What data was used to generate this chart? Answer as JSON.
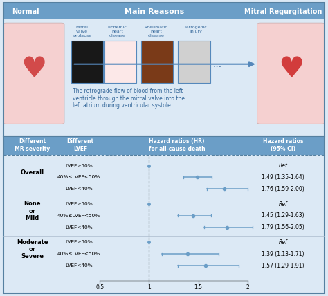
{
  "top_bg_color": "#dce9f5",
  "table_bg_color": "#e8f0f8",
  "header_bg_color": "#6b9ec7",
  "border_color": "#5580a0",
  "title_color": "white",
  "top_titles": [
    "Normal",
    "Main Reasons",
    "Mitral Regurgitation"
  ],
  "col_headers": [
    "Different\nMR severity",
    "Different\nLVEF",
    "Hazard ratios (HR)\nfor all-cause death",
    "Hazard ratios\n(95% CI)"
  ],
  "groups": [
    {
      "label": "Overall",
      "rows": [
        {
          "lvef": "LVEF≥50%",
          "hr": null,
          "lo": null,
          "hi": null,
          "ci_text": "Ref"
        },
        {
          "lvef": "40%≤LVEF<50%",
          "hr": 1.49,
          "lo": 1.35,
          "hi": 1.64,
          "ci_text": "1.49 (1.35-1.64)"
        },
        {
          "lvef": "LVEF<40%",
          "hr": 1.76,
          "lo": 1.59,
          "hi": 2.0,
          "ci_text": "1.76 (1.59-2.00)"
        }
      ]
    },
    {
      "label": "None\nor\nMild",
      "rows": [
        {
          "lvef": "LVEF≥50%",
          "hr": null,
          "lo": null,
          "hi": null,
          "ci_text": "Ref"
        },
        {
          "lvef": "40%≤LVEF<50%",
          "hr": 1.45,
          "lo": 1.29,
          "hi": 1.63,
          "ci_text": "1.45 (1.29-1.63)"
        },
        {
          "lvef": "LVEF<40%",
          "hr": 1.79,
          "lo": 1.56,
          "hi": 2.05,
          "ci_text": "1.79 (1.56-2.05)"
        }
      ]
    },
    {
      "label": "Moderate\nor\nSevere",
      "rows": [
        {
          "lvef": "LVEF≥50%",
          "hr": null,
          "lo": null,
          "hi": null,
          "ci_text": "Ref"
        },
        {
          "lvef": "40%≤LVEF<50%",
          "hr": 1.39,
          "lo": 1.13,
          "hi": 1.71,
          "ci_text": "1.39 (1.13-1.71)"
        },
        {
          "lvef": "LVEF<40%",
          "hr": 1.57,
          "lo": 1.29,
          "hi": 1.91,
          "ci_text": "1.57 (1.29-1.91)"
        }
      ]
    }
  ],
  "xmin": 0.5,
  "xmax": 2.0,
  "xticks": [
    0.5,
    1.0,
    1.5,
    2.0
  ],
  "xticklabels": [
    "0.5",
    "1",
    "1.5",
    "2"
  ],
  "dot_color": "#6b9ec7",
  "line_color": "#6b9ec7",
  "ref_dot_color": "#6b9ec7",
  "text_description": "The retrograde flow of blood from the left\nventricle through the mitral valve into the\nleft atrium during ventricular systole.",
  "top_labels": [
    "Mitral\nvalve\nprolapse",
    "Ischemic\nheart\ndisease",
    "Rheumatic\nheart\ndisease",
    "Iatrogenic\ninjury"
  ]
}
